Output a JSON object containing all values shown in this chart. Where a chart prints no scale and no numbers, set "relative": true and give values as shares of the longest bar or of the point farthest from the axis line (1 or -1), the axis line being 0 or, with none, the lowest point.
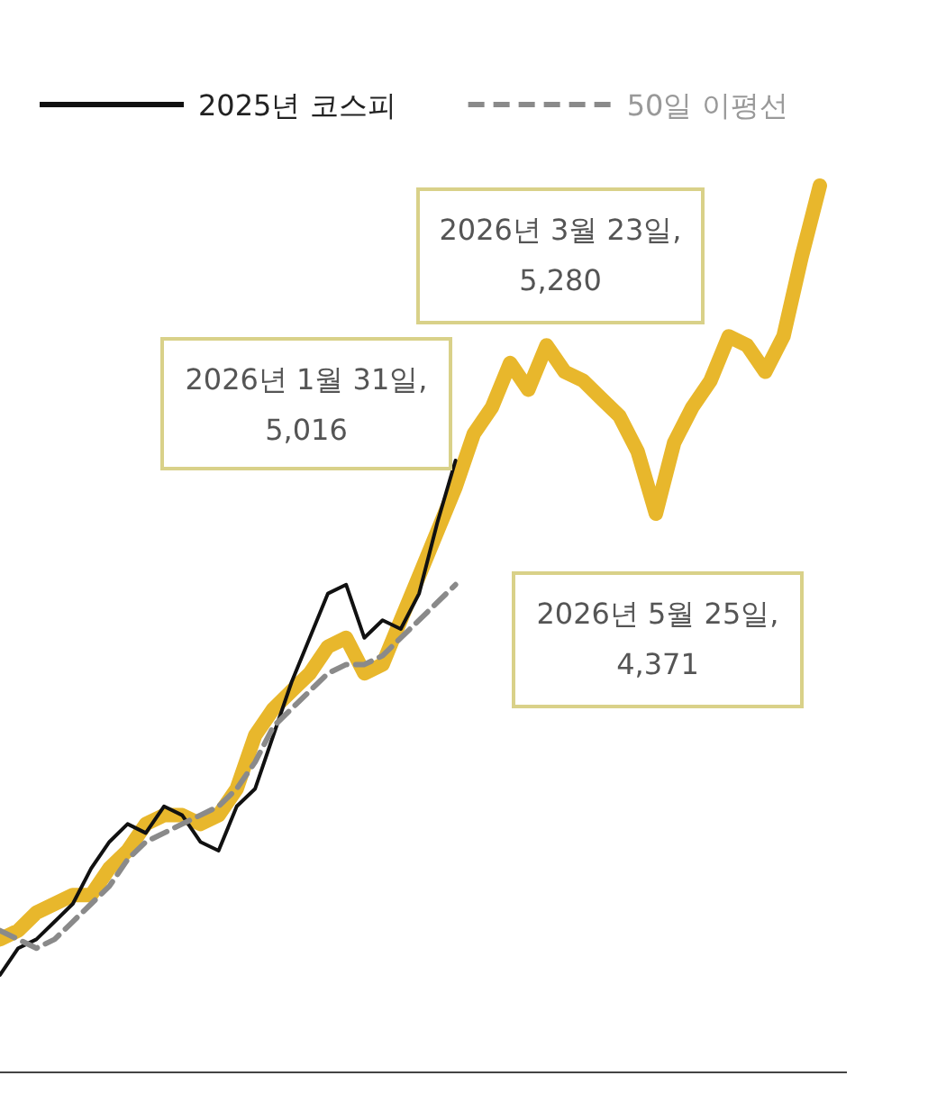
{
  "chart_data": {
    "type": "line",
    "relative": true,
    "legend": "top",
    "categories": [
      null,
      null,
      null,
      null,
      null,
      null,
      null,
      null,
      null,
      null,
      null,
      null,
      null,
      null,
      null,
      null,
      null,
      null,
      null,
      null,
      null,
      null,
      null,
      null,
      null,
      null,
      null,
      null,
      null,
      null,
      null,
      null,
      null,
      null,
      null,
      null,
      null,
      null,
      null,
      null,
      null,
      null,
      null,
      null,
      null,
      null
    ],
    "series": [
      {
        "color": "#e8b72c",
        "values": [
          0.15,
          0.16,
          0.18,
          0.19,
          0.2,
          0.2,
          0.23,
          0.25,
          0.28,
          0.29,
          0.29,
          0.28,
          0.29,
          0.32,
          0.38,
          0.41,
          0.43,
          0.45,
          0.48,
          0.49,
          0.45,
          0.46,
          0.51,
          0.56,
          0.61,
          0.66,
          0.72,
          0.75,
          0.8,
          0.77,
          0.82,
          0.79,
          0.78,
          0.76,
          0.74,
          0.7,
          0.63,
          0.71,
          0.75,
          0.78,
          0.83,
          0.82,
          0.79,
          0.83,
          0.92,
          1.0
        ]
      },
      {
        "name": "2025년 코스피",
        "color": "#111111",
        "values": [
          0.11,
          0.14,
          0.15,
          0.17,
          0.19,
          0.23,
          0.26,
          0.28,
          0.27,
          0.3,
          0.29,
          0.26,
          0.25,
          0.3,
          0.32,
          0.38,
          0.44,
          0.49,
          0.54,
          0.55,
          0.49,
          0.51,
          0.5,
          0.54,
          0.62,
          0.69,
          null,
          null,
          null,
          null,
          null,
          null,
          null,
          null,
          null,
          null,
          null,
          null,
          null,
          null,
          null,
          null,
          null,
          null,
          null,
          null
        ]
      },
      {
        "name": "50일 이평선",
        "color": "#8a8a8a",
        "line_style": "dashed",
        "values": [
          0.16,
          0.15,
          0.14,
          0.15,
          0.17,
          0.19,
          0.21,
          0.24,
          0.26,
          0.27,
          0.28,
          0.29,
          0.3,
          0.32,
          0.35,
          0.39,
          0.41,
          0.43,
          0.45,
          0.46,
          0.46,
          0.47,
          0.49,
          0.51,
          0.53,
          0.55,
          null,
          null,
          null,
          null,
          null,
          null,
          null,
          null,
          null,
          null,
          null,
          null,
          null,
          null,
          null,
          null,
          null,
          null,
          null,
          null
        ]
      }
    ],
    "annotations": [
      "2026년 1월 31일,\n5,016",
      "2026년 3월 23일,\n5,280",
      "2026년 5월 25일,\n4,371"
    ]
  }
}
